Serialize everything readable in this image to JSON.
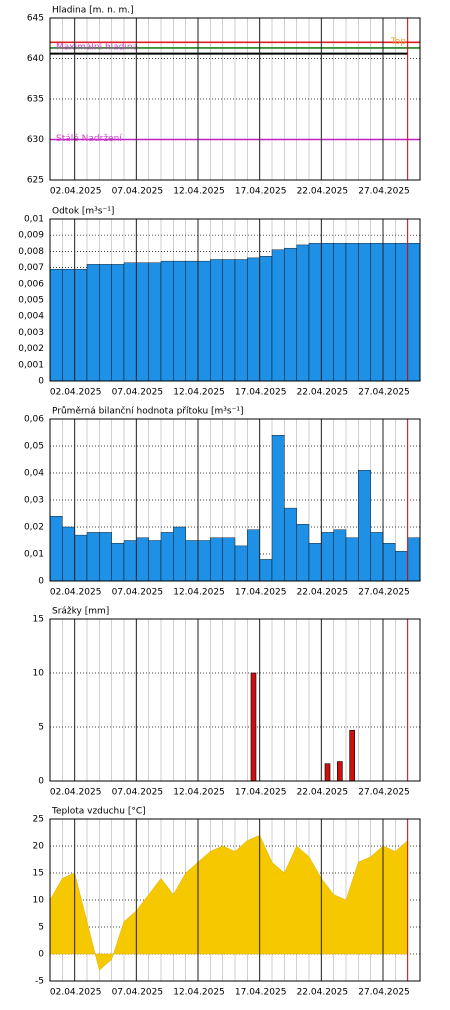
{
  "chart_data": [
    {
      "type": "level",
      "title": "Hladina [m. n. m.]",
      "xlim": [
        "31.03.2025",
        "30.04.2025"
      ],
      "x": [
        "31.03.2025",
        "01.04.2025",
        "02.04.2025",
        "03.04.2025",
        "04.04.2025",
        "05.04.2025",
        "06.04.2025",
        "07.04.2025",
        "08.04.2025",
        "09.04.2025",
        "10.04.2025",
        "11.04.2025",
        "12.04.2025",
        "13.04.2025",
        "14.04.2025",
        "15.04.2025",
        "16.04.2025",
        "17.04.2025",
        "18.04.2025",
        "19.04.2025",
        "20.04.2025",
        "21.04.2025",
        "22.04.2025",
        "23.04.2025",
        "24.04.2025",
        "25.04.2025",
        "26.04.2025",
        "27.04.2025",
        "28.04.2025",
        "29.04.2025"
      ],
      "values": [
        640.6,
        640.6,
        640.6,
        640.6,
        640.6,
        640.6,
        640.6,
        640.6,
        640.6,
        640.6,
        640.6,
        640.6,
        640.6,
        640.6,
        640.6,
        640.6,
        640.6,
        640.6,
        640.6,
        640.6,
        640.6,
        640.6,
        640.6,
        640.6,
        640.6,
        640.6,
        640.6,
        640.6,
        640.6,
        640.6
      ],
      "color": "#000000",
      "ylim": [
        625,
        645
      ],
      "yticks": [
        625,
        630,
        635,
        640,
        645
      ],
      "xticks": [
        "02.04.2025",
        "07.04.2025",
        "12.04.2025",
        "17.04.2025",
        "22.04.2025",
        "27.04.2025"
      ],
      "current_date": "29.04.2025",
      "reference_lines": [
        {
          "value": 642,
          "color": "#e02020",
          "label": "Top",
          "label_color": "#f0a030"
        },
        {
          "value": 641.3,
          "color": "#208020",
          "label": "Maximální hladina",
          "label_color": "#d040d0"
        },
        {
          "value": 630,
          "color": "#c020c0",
          "label": "Stálé Nadržení",
          "label_color": "#d040d0"
        }
      ]
    },
    {
      "type": "step",
      "title": "Odtok [m³s⁻¹]",
      "xlim": [
        "31.03.2025",
        "30.04.2025"
      ],
      "x": [
        "31.03.2025",
        "01.04.2025",
        "02.04.2025",
        "03.04.2025",
        "04.04.2025",
        "05.04.2025",
        "06.04.2025",
        "07.04.2025",
        "08.04.2025",
        "09.04.2025",
        "10.04.2025",
        "11.04.2025",
        "12.04.2025",
        "13.04.2025",
        "14.04.2025",
        "15.04.2025",
        "16.04.2025",
        "17.04.2025",
        "18.04.2025",
        "19.04.2025",
        "20.04.2025",
        "21.04.2025",
        "22.04.2025",
        "23.04.2025",
        "24.04.2025",
        "25.04.2025",
        "26.04.2025",
        "27.04.2025",
        "28.04.2025",
        "29.04.2025"
      ],
      "values": [
        0.0069,
        0.0069,
        0.0069,
        0.0072,
        0.0072,
        0.0072,
        0.0073,
        0.0073,
        0.0073,
        0.0074,
        0.0074,
        0.0074,
        0.0074,
        0.0075,
        0.0075,
        0.0075,
        0.0076,
        0.0077,
        0.0081,
        0.0082,
        0.0084,
        0.0085,
        0.0085,
        0.0085,
        0.0085,
        0.0085,
        0.0085,
        0.0085,
        0.0085,
        0.0085
      ],
      "color": "#1e90e6",
      "ylim": [
        0,
        0.01
      ],
      "yticks": [
        0,
        {
          "value": 0.001,
          "label": "0,001"
        },
        {
          "value": 0.002,
          "label": "0,002"
        },
        {
          "value": 0.003,
          "label": "0,003"
        },
        {
          "value": 0.004,
          "label": "0,004"
        },
        {
          "value": 0.005,
          "label": "0,005"
        },
        {
          "value": 0.006,
          "label": "0,006"
        },
        {
          "value": 0.007,
          "label": "0,007"
        },
        {
          "value": 0.008,
          "label": "0,008"
        },
        {
          "value": 0.009,
          "label": "0,009"
        },
        {
          "value": 0.01,
          "label": "0,01"
        }
      ],
      "xticks": [
        "02.04.2025",
        "07.04.2025",
        "12.04.2025",
        "17.04.2025",
        "22.04.2025",
        "27.04.2025"
      ],
      "current_date": "29.04.2025"
    },
    {
      "type": "step",
      "title": "Průměrná bilanční hodnota přítoku   [m³s⁻¹]",
      "xlim": [
        "31.03.2025",
        "30.04.2025"
      ],
      "x": [
        "31.03.2025",
        "01.04.2025",
        "02.04.2025",
        "03.04.2025",
        "04.04.2025",
        "05.04.2025",
        "06.04.2025",
        "07.04.2025",
        "08.04.2025",
        "09.04.2025",
        "10.04.2025",
        "11.04.2025",
        "12.04.2025",
        "13.04.2025",
        "14.04.2025",
        "15.04.2025",
        "16.04.2025",
        "17.04.2025",
        "18.04.2025",
        "19.04.2025",
        "20.04.2025",
        "21.04.2025",
        "22.04.2025",
        "23.04.2025",
        "24.04.2025",
        "25.04.2025",
        "26.04.2025",
        "27.04.2025",
        "28.04.2025",
        "29.04.2025"
      ],
      "values": [
        0.024,
        0.02,
        0.017,
        0.018,
        0.018,
        0.014,
        0.015,
        0.016,
        0.015,
        0.018,
        0.02,
        0.015,
        0.015,
        0.016,
        0.016,
        0.013,
        0.019,
        0.008,
        0.054,
        0.027,
        0.021,
        0.014,
        0.018,
        0.019,
        0.016,
        0.041,
        0.018,
        0.014,
        0.011,
        0.016
      ],
      "color": "#1e90e6",
      "ylim": [
        0,
        0.06
      ],
      "yticks": [
        0,
        {
          "value": 0.01,
          "label": "0,01"
        },
        {
          "value": 0.02,
          "label": "0,02"
        },
        {
          "value": 0.03,
          "label": "0,03"
        },
        {
          "value": 0.04,
          "label": "0,04"
        },
        {
          "value": 0.05,
          "label": "0,05"
        },
        {
          "value": 0.06,
          "label": "0,06"
        }
      ],
      "xticks": [
        "02.04.2025",
        "07.04.2025",
        "12.04.2025",
        "17.04.2025",
        "22.04.2025",
        "27.04.2025"
      ],
      "current_date": "29.04.2025"
    },
    {
      "type": "bar",
      "title": "Srážky [mm]",
      "xlim": [
        "31.03.2025",
        "30.04.2025"
      ],
      "x": [
        "31.03.2025",
        "01.04.2025",
        "02.04.2025",
        "03.04.2025",
        "04.04.2025",
        "05.04.2025",
        "06.04.2025",
        "07.04.2025",
        "08.04.2025",
        "09.04.2025",
        "10.04.2025",
        "11.04.2025",
        "12.04.2025",
        "13.04.2025",
        "14.04.2025",
        "15.04.2025",
        "16.04.2025",
        "17.04.2025",
        "18.04.2025",
        "19.04.2025",
        "20.04.2025",
        "21.04.2025",
        "22.04.2025",
        "23.04.2025",
        "24.04.2025",
        "25.04.2025",
        "26.04.2025",
        "27.04.2025",
        "28.04.2025",
        "29.04.2025"
      ],
      "values": [
        0,
        0,
        0,
        0,
        0,
        0,
        0,
        0,
        0,
        0,
        0,
        0,
        0,
        0,
        0,
        0,
        10,
        0,
        0,
        0,
        0,
        0,
        1.6,
        1.8,
        4.7,
        0,
        0,
        0,
        0,
        0
      ],
      "color": "#cc1010",
      "ylim": [
        0,
        15
      ],
      "yticks": [
        0,
        5,
        10,
        15
      ],
      "xticks": [
        "02.04.2025",
        "07.04.2025",
        "12.04.2025",
        "17.04.2025",
        "22.04.2025",
        "27.04.2025"
      ],
      "current_date": "29.04.2025"
    },
    {
      "type": "area",
      "title": "Teplota vzduchu [°C]",
      "xlim": [
        "31.03.2025",
        "30.04.2025"
      ],
      "x": [
        "31.03.2025",
        "01.04.2025",
        "02.04.2025",
        "03.04.2025",
        "04.04.2025",
        "05.04.2025",
        "06.04.2025",
        "07.04.2025",
        "08.04.2025",
        "09.04.2025",
        "10.04.2025",
        "11.04.2025",
        "12.04.2025",
        "13.04.2025",
        "14.04.2025",
        "15.04.2025",
        "16.04.2025",
        "17.04.2025",
        "18.04.2025",
        "19.04.2025",
        "20.04.2025",
        "21.04.2025",
        "22.04.2025",
        "23.04.2025",
        "24.04.2025",
        "25.04.2025",
        "26.04.2025",
        "27.04.2025",
        "28.04.2025",
        "29.04.2025"
      ],
      "values": [
        10,
        14,
        15,
        6,
        -3,
        -1,
        6,
        8,
        11,
        14,
        11,
        15,
        17,
        19,
        20,
        19,
        21,
        22,
        17,
        15,
        20,
        18,
        14,
        11,
        10,
        17,
        18,
        20,
        19,
        21
      ],
      "color": "#f5c800",
      "ylim": [
        -5,
        25
      ],
      "yticks": [
        -5,
        0,
        5,
        10,
        15,
        20,
        25
      ],
      "xticks": [
        "02.04.2025",
        "07.04.2025",
        "12.04.2025",
        "17.04.2025",
        "22.04.2025",
        "27.04.2025"
      ],
      "current_date": "29.04.2025"
    }
  ]
}
